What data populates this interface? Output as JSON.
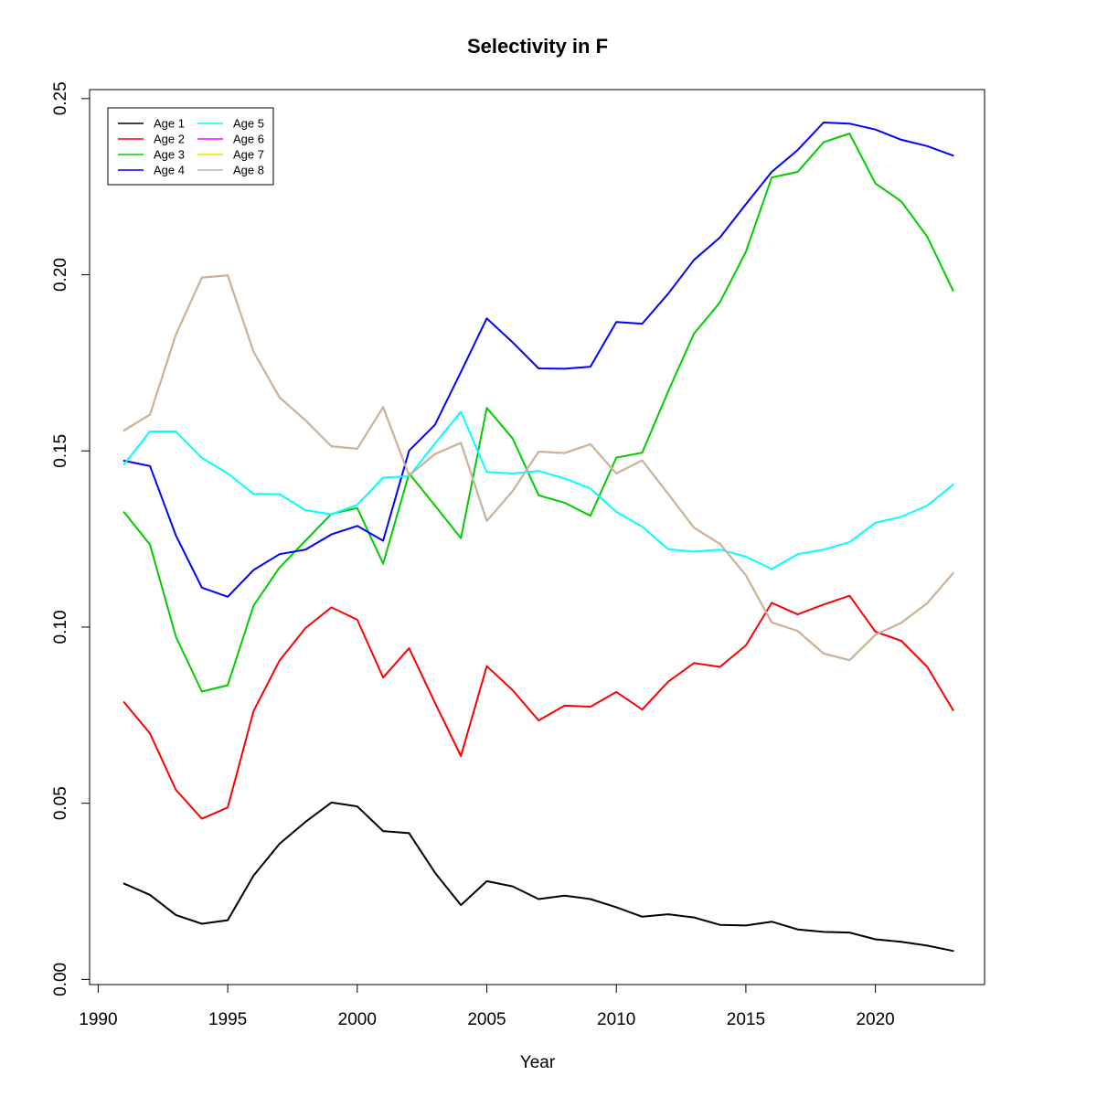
{
  "chart_data": {
    "type": "line",
    "title": "Selectivity in F",
    "xlabel": "Year",
    "ylabel": "",
    "xlim": [
      1990,
      2023
    ],
    "ylim": [
      0,
      0.25
    ],
    "x_ticks": [
      "1990",
      "1995",
      "2000",
      "2005",
      "2010",
      "2015",
      "2020"
    ],
    "y_ticks": [
      "0.00",
      "0.05",
      "0.10",
      "0.15",
      "0.20",
      "0.25"
    ],
    "grid": false,
    "legend_position": "top-left",
    "x": [
      1991,
      1992,
      1993,
      1994,
      1995,
      1996,
      1997,
      1998,
      1999,
      2000,
      2001,
      2002,
      2003,
      2004,
      2005,
      2006,
      2007,
      2008,
      2009,
      2010,
      2011,
      2012,
      2013,
      2014,
      2015,
      2016,
      2017,
      2018,
      2019,
      2020,
      2021,
      2022,
      2023
    ],
    "series": [
      {
        "name": "Age 1",
        "color": "#000000",
        "values": [
          0.0272,
          0.024,
          0.0183,
          0.0158,
          0.0168,
          0.0295,
          0.0385,
          0.0447,
          0.0502,
          0.0491,
          0.0421,
          0.0415,
          0.0303,
          0.0211,
          0.0279,
          0.0264,
          0.0228,
          0.0238,
          0.0228,
          0.0205,
          0.0178,
          0.0185,
          0.0176,
          0.0155,
          0.0153,
          0.0164,
          0.0142,
          0.0135,
          0.0133,
          0.0114,
          0.0107,
          0.0096,
          0.0081
        ]
      },
      {
        "name": "Age 2",
        "color": "#ff0000",
        "values": [
          0.0787,
          0.0698,
          0.0538,
          0.0456,
          0.0488,
          0.0762,
          0.0905,
          0.0997,
          0.1056,
          0.1021,
          0.0857,
          0.094,
          0.0785,
          0.0634,
          0.0889,
          0.0821,
          0.0735,
          0.0777,
          0.0774,
          0.0816,
          0.0766,
          0.0845,
          0.0898,
          0.0887,
          0.0948,
          0.1069,
          0.1036,
          0.1064,
          0.1089,
          0.0987,
          0.0961,
          0.0887,
          0.0764
        ]
      },
      {
        "name": "Age 3",
        "color": "#00cd00",
        "values": [
          0.1326,
          0.1234,
          0.0973,
          0.0817,
          0.0835,
          0.1061,
          0.1169,
          0.1245,
          0.1321,
          0.1338,
          0.118,
          0.1436,
          0.1345,
          0.1252,
          0.1622,
          0.1535,
          0.1374,
          0.1353,
          0.1316,
          0.1481,
          0.1495,
          0.1669,
          0.1833,
          0.1922,
          0.2065,
          0.2276,
          0.2292,
          0.2376,
          0.2401,
          0.2259,
          0.2208,
          0.2108,
          0.1955
        ]
      },
      {
        "name": "Age 4",
        "color": "#0000ff",
        "values": [
          0.1472,
          0.1457,
          0.126,
          0.1112,
          0.1086,
          0.1162,
          0.1207,
          0.122,
          0.1263,
          0.1287,
          0.1245,
          0.1501,
          0.1574,
          0.1724,
          0.1876,
          0.1808,
          0.1734,
          0.1733,
          0.1739,
          0.1866,
          0.1861,
          0.1946,
          0.2042,
          0.2106,
          0.22,
          0.2292,
          0.2354,
          0.2432,
          0.2429,
          0.2412,
          0.2383,
          0.2365,
          0.2338
        ]
      },
      {
        "name": "Age 5",
        "color": "#00ffff",
        "values": [
          0.1462,
          0.1555,
          0.1555,
          0.148,
          0.1436,
          0.1378,
          0.1377,
          0.1332,
          0.132,
          0.1347,
          0.1424,
          0.1428,
          0.1521,
          0.1611,
          0.144,
          0.1436,
          0.1443,
          0.1422,
          0.1393,
          0.1327,
          0.1285,
          0.1221,
          0.1214,
          0.122,
          0.12,
          0.1165,
          0.1207,
          0.122,
          0.1241,
          0.1296,
          0.1313,
          0.1345,
          0.1404
        ]
      },
      {
        "name": "Age 6",
        "color": "#ff00ff",
        "values": [
          0.1558,
          0.1603,
          0.183,
          0.1992,
          0.1998,
          0.1781,
          0.1652,
          0.1587,
          0.1513,
          0.1506,
          0.1624,
          0.143,
          0.1491,
          0.1523,
          0.1301,
          0.1386,
          0.1498,
          0.1494,
          0.1519,
          0.1436,
          0.1473,
          0.1378,
          0.1282,
          0.1236,
          0.1147,
          0.1013,
          0.0989,
          0.0925,
          0.0906,
          0.0978,
          0.1012,
          0.1068,
          0.1153
        ]
      },
      {
        "name": "Age 7",
        "color": "#e6e600",
        "values": [
          0.1558,
          0.1603,
          0.183,
          0.1992,
          0.1998,
          0.1781,
          0.1652,
          0.1587,
          0.1513,
          0.1506,
          0.1624,
          0.143,
          0.1491,
          0.1523,
          0.1301,
          0.1386,
          0.1498,
          0.1494,
          0.1519,
          0.1436,
          0.1473,
          0.1378,
          0.1282,
          0.1236,
          0.1147,
          0.1013,
          0.0989,
          0.0925,
          0.0906,
          0.0978,
          0.1012,
          0.1068,
          0.1153
        ]
      },
      {
        "name": "Age 8",
        "color": "#c8b4a0",
        "values": [
          0.1558,
          0.1603,
          0.183,
          0.1992,
          0.1998,
          0.1781,
          0.1652,
          0.1587,
          0.1513,
          0.1506,
          0.1624,
          0.143,
          0.1491,
          0.1523,
          0.1301,
          0.1386,
          0.1498,
          0.1494,
          0.1519,
          0.1436,
          0.1473,
          0.1378,
          0.1282,
          0.1236,
          0.1147,
          0.1013,
          0.0989,
          0.0925,
          0.0906,
          0.0978,
          0.1012,
          0.1068,
          0.1153
        ]
      }
    ]
  }
}
